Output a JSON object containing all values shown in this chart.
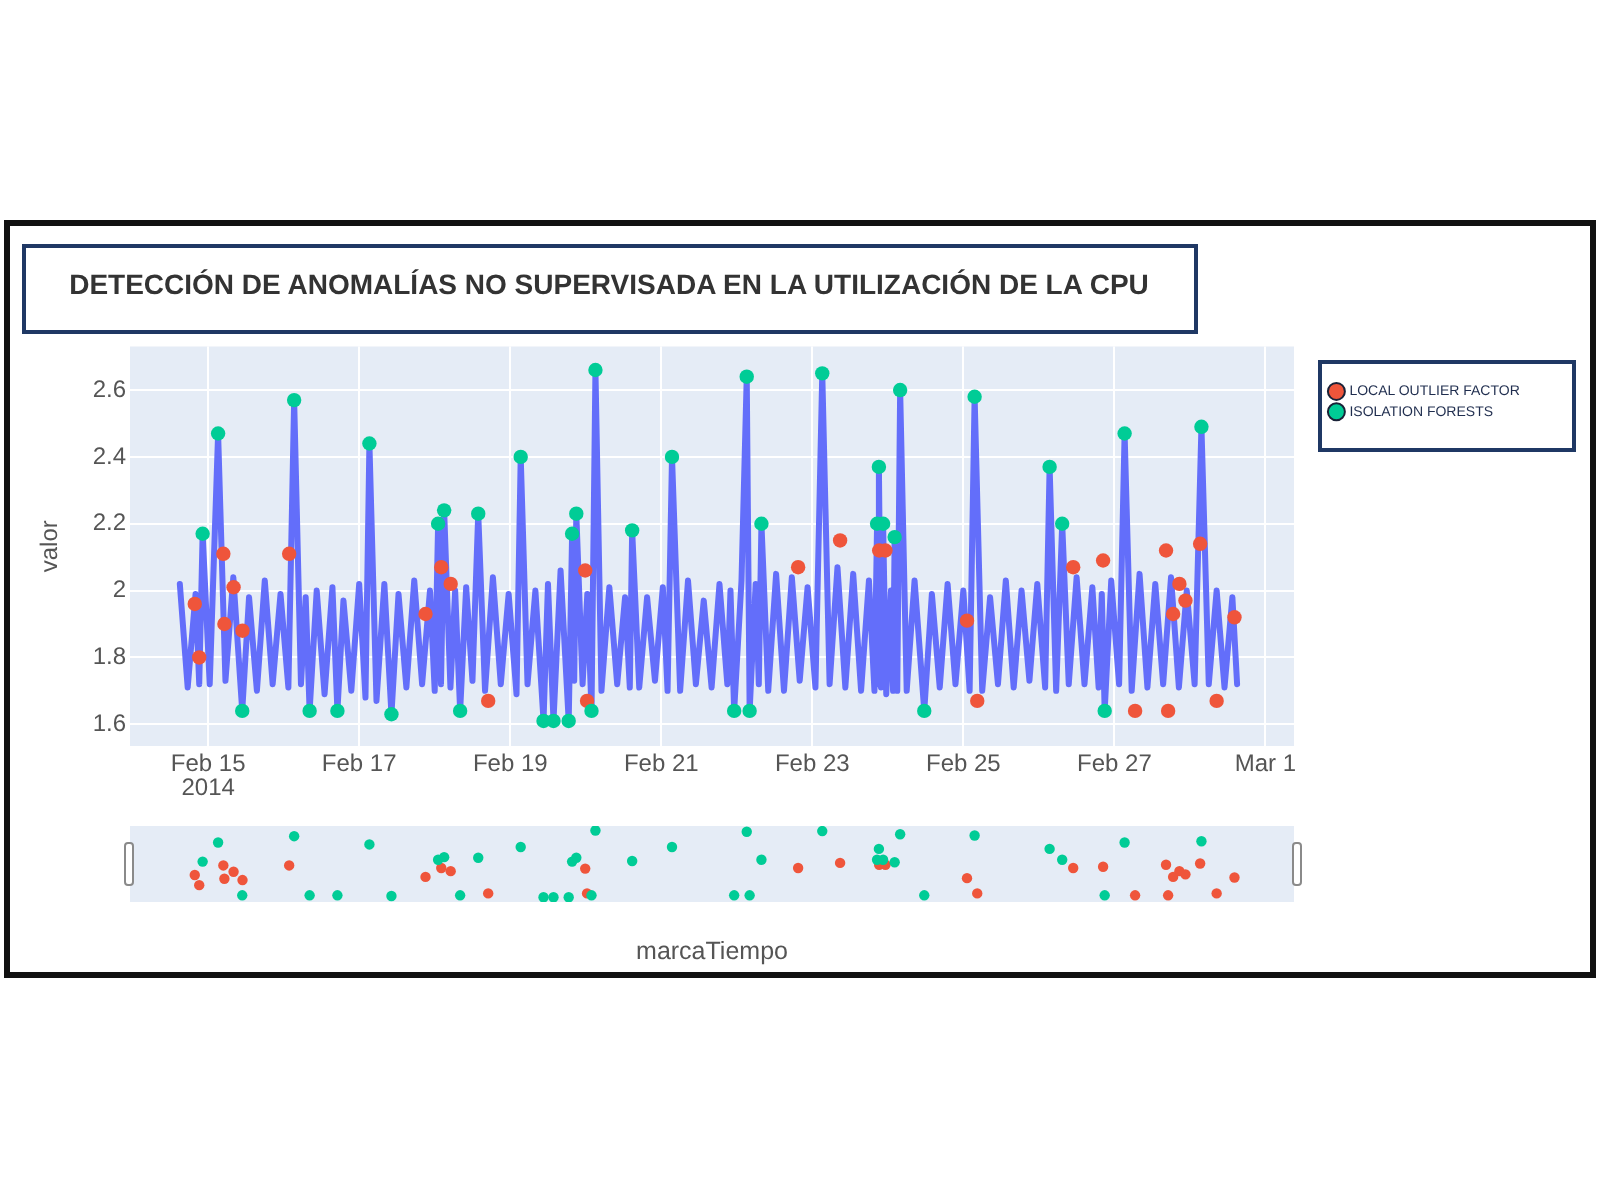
{
  "chart_data": {
    "type": "line",
    "title": "DETECCIÓN DE ANOMALÍAS NO SUPERVISADA EN LA UTILIZACIÓN DE LA CPU",
    "ylabel": "valor",
    "annotations": [
      "marcaTiempo"
    ],
    "xlim": [
      "2014-02-13T23:10",
      "2014-03-01T09:05"
    ],
    "xticks": [
      {
        "value": "2014-02-15",
        "label": "Feb 15\n2014"
      },
      {
        "value": "2014-02-17",
        "label": "Feb 17"
      },
      {
        "value": "2014-02-19",
        "label": "Feb 19"
      },
      {
        "value": "2014-02-21",
        "label": "Feb 21"
      },
      {
        "value": "2014-02-23",
        "label": "Feb 23"
      },
      {
        "value": "2014-02-25",
        "label": "Feb 25"
      },
      {
        "value": "2014-02-27",
        "label": "Feb 27"
      },
      {
        "value": "2014-03-01",
        "label": "Mar 1"
      }
    ],
    "ylim": [
      1.535,
      2.73
    ],
    "yticks": [
      1.6,
      1.8,
      2,
      2.2,
      2.4,
      2.6
    ],
    "grid": true,
    "legend": "top right",
    "series": [
      {
        "type": "line",
        "color": "#636efa",
        "x": [
          "2014-02-14T15:00",
          "2014-02-14T17:30",
          "2014-02-14T20:00",
          "2014-02-14T21:10",
          "2014-02-14T22:15",
          "2014-02-15T00:30",
          "2014-02-15T03:10",
          "2014-02-15T05:30",
          "2014-02-15T08:00",
          "2014-02-15T10:50",
          "2014-02-15T13:00",
          "2014-02-15T15:30",
          "2014-02-15T18:00",
          "2014-02-15T20:30",
          "2014-02-15T23:00",
          "2014-02-16T01:30",
          "2014-02-16T03:20",
          "2014-02-16T05:30",
          "2014-02-16T07:00",
          "2014-02-16T08:15",
          "2014-02-16T10:30",
          "2014-02-16T13:00",
          "2014-02-16T15:30",
          "2014-02-16T17:05",
          "2014-02-16T19:00",
          "2014-02-16T21:30",
          "2014-02-17T00:00",
          "2014-02-17T02:00",
          "2014-02-17T03:15",
          "2014-02-17T05:30",
          "2014-02-17T08:00",
          "2014-02-17T10:15",
          "2014-02-17T12:30",
          "2014-02-17T15:00",
          "2014-02-17T17:30",
          "2014-02-17T20:00",
          "2014-02-17T22:30",
          "2014-02-18T00:00",
          "2014-02-18T01:05",
          "2014-02-18T02:00",
          "2014-02-18T03:00",
          "2014-02-18T05:00",
          "2014-02-18T06:30",
          "2014-02-18T08:05",
          "2014-02-18T10:00",
          "2014-02-18T12:00",
          "2014-02-18T13:50",
          "2014-02-18T16:00",
          "2014-02-18T18:30",
          "2014-02-18T21:00",
          "2014-02-18T23:30",
          "2014-02-19T02:00",
          "2014-02-19T03:20",
          "2014-02-19T05:30",
          "2014-02-19T08:00",
          "2014-02-19T10:35",
          "2014-02-19T12:00",
          "2014-02-19T13:45",
          "2014-02-19T16:00",
          "2014-02-19T18:35",
          "2014-02-19T19:40",
          "2014-02-19T20:20",
          "2014-02-19T21:00",
          "2014-02-19T23:00",
          "2014-02-20T00:30",
          "2014-02-20T01:50",
          "2014-02-20T03:05",
          "2014-02-20T05:00",
          "2014-02-20T07:30",
          "2014-02-20T10:00",
          "2014-02-20T12:30",
          "2014-02-20T14:00",
          "2014-02-20T14:45",
          "2014-02-20T17:00",
          "2014-02-20T19:30",
          "2014-02-20T22:00",
          "2014-02-21T00:30",
          "2014-02-21T02:00",
          "2014-02-21T03:25",
          "2014-02-21T06:00",
          "2014-02-21T08:30",
          "2014-02-21T11:00",
          "2014-02-21T13:30",
          "2014-02-21T16:00",
          "2014-02-21T18:30",
          "2014-02-21T21:00",
          "2014-02-21T22:00",
          "2014-02-21T23:10",
          "2014-02-22T01:30",
          "2014-02-22T03:10",
          "2014-02-22T04:05",
          "2014-02-22T06:00",
          "2014-02-22T07:00",
          "2014-02-22T07:50",
          "2014-02-22T10:00",
          "2014-02-22T12:30",
          "2014-02-22T15:00",
          "2014-02-22T17:30",
          "2014-02-22T20:00",
          "2014-02-22T22:30",
          "2014-02-23T01:00",
          "2014-02-23T03:10",
          "2014-02-23T05:30",
          "2014-02-23T08:00",
          "2014-02-23T10:30",
          "2014-02-23T13:00",
          "2014-02-23T15:30",
          "2014-02-23T18:00",
          "2014-02-23T19:45",
          "2014-02-23T20:35",
          "2014-02-23T20:55",
          "2014-02-23T21:10",
          "2014-02-23T21:50",
          "2014-02-23T22:30",
          "2014-02-23T23:30",
          "2014-02-24T01:00",
          "2014-02-24T01:40",
          "2014-02-24T02:10",
          "2014-02-24T03:00",
          "2014-02-24T03:55",
          "2014-02-24T06:00",
          "2014-02-24T08:30",
          "2014-02-24T11:35",
          "2014-02-24T14:00",
          "2014-02-24T16:30",
          "2014-02-24T19:00",
          "2014-02-24T21:30",
          "2014-02-25T00:00",
          "2014-02-25T02:00",
          "2014-02-25T03:35",
          "2014-02-25T06:00",
          "2014-02-25T08:30",
          "2014-02-25T11:00",
          "2014-02-25T13:30",
          "2014-02-25T16:00",
          "2014-02-25T18:30",
          "2014-02-25T21:00",
          "2014-02-25T23:30",
          "2014-02-26T02:00",
          "2014-02-26T03:25",
          "2014-02-26T05:30",
          "2014-02-26T07:25",
          "2014-02-26T09:30",
          "2014-02-26T12:00",
          "2014-02-26T14:30",
          "2014-02-26T17:00",
          "2014-02-26T19:00",
          "2014-02-26T20:00",
          "2014-02-26T20:55",
          "2014-02-26T23:00",
          "2014-02-27T01:30",
          "2014-02-27T03:15",
          "2014-02-27T05:30",
          "2014-02-27T08:00",
          "2014-02-27T10:30",
          "2014-02-27T13:00",
          "2014-02-27T15:30",
          "2014-02-27T18:00",
          "2014-02-27T20:30",
          "2014-02-27T23:00",
          "2014-02-28T01:30",
          "2014-02-28T03:40",
          "2014-02-28T06:00",
          "2014-02-28T08:30",
          "2014-02-28T11:00",
          "2014-02-28T13:30",
          "2014-02-28T15:00"
        ],
        "values": [
          2.02,
          1.71,
          1.99,
          1.72,
          2.17,
          1.72,
          2.47,
          1.73,
          2.04,
          1.64,
          1.98,
          1.7,
          2.03,
          1.72,
          1.99,
          1.71,
          2.57,
          1.72,
          1.98,
          1.64,
          2.0,
          1.69,
          2.01,
          1.64,
          1.97,
          1.7,
          2.02,
          1.68,
          2.44,
          1.67,
          2.02,
          1.63,
          1.99,
          1.71,
          2.03,
          1.72,
          2.0,
          1.7,
          2.2,
          1.72,
          2.24,
          1.71,
          2.0,
          1.64,
          2.01,
          1.73,
          2.23,
          1.7,
          2.04,
          1.72,
          1.99,
          1.69,
          2.4,
          1.72,
          2.0,
          1.61,
          2.02,
          1.61,
          2.06,
          1.61,
          2.17,
          1.73,
          2.23,
          1.72,
          1.99,
          1.64,
          2.66,
          1.7,
          2.01,
          1.72,
          1.98,
          1.71,
          2.18,
          1.71,
          1.98,
          1.73,
          2.01,
          1.7,
          2.4,
          1.7,
          2.03,
          1.72,
          1.97,
          1.71,
          2.02,
          1.72,
          2.0,
          1.64,
          2.03,
          2.64,
          1.64,
          2.02,
          1.72,
          2.2,
          1.7,
          2.05,
          1.7,
          2.04,
          1.73,
          2.01,
          1.71,
          2.65,
          1.72,
          2.07,
          1.71,
          2.05,
          1.7,
          2.03,
          1.7,
          2.2,
          1.72,
          2.37,
          1.71,
          2.2,
          1.69,
          2.0,
          1.7,
          2.16,
          1.7,
          2.6,
          1.7,
          2.03,
          1.64,
          1.99,
          1.71,
          2.02,
          1.72,
          2.0,
          1.7,
          2.58,
          1.7,
          1.98,
          1.72,
          2.03,
          1.71,
          2.0,
          1.73,
          2.02,
          1.71,
          2.37,
          1.7,
          2.2,
          1.72,
          2.04,
          1.72,
          2.01,
          1.71,
          1.99,
          1.64,
          2.03,
          1.72,
          2.47,
          1.7,
          2.05,
          1.71,
          2.02,
          1.72,
          2.04,
          1.71,
          2.0,
          1.72,
          2.49,
          1.72,
          2.0,
          1.71,
          1.98,
          1.72
        ]
      },
      {
        "type": "scatter",
        "name": "LOCAL OUTLIER FACTOR",
        "color": "#ef553b",
        "marker": "circle",
        "x": [
          "2014-02-14T19:45",
          "2014-02-14T21:10",
          "2014-02-15T04:50",
          "2014-02-15T05:10",
          "2014-02-15T08:05",
          "2014-02-15T10:55",
          "2014-02-16T01:45",
          "2014-02-17T21:05",
          "2014-02-18T02:05",
          "2014-02-18T05:05",
          "2014-02-18T17:00",
          "2014-02-19T23:50",
          "2014-02-20T00:25",
          "2014-02-22T19:30",
          "2014-02-23T08:50",
          "2014-02-23T21:15",
          "2014-02-23T23:15",
          "2014-02-25T01:10",
          "2014-02-25T04:25",
          "2014-02-26T10:55",
          "2014-02-26T20:25",
          "2014-02-27T06:35",
          "2014-02-27T16:25",
          "2014-02-27T17:05",
          "2014-02-27T18:40",
          "2014-02-27T20:40",
          "2014-02-27T22:35",
          "2014-02-28T03:15",
          "2014-02-28T08:30",
          "2014-02-28T14:10"
        ],
        "values": [
          1.96,
          1.8,
          2.11,
          1.9,
          2.01,
          1.88,
          2.11,
          1.93,
          2.07,
          2.02,
          1.67,
          2.06,
          1.67,
          2.07,
          2.15,
          2.12,
          2.12,
          1.91,
          1.67,
          2.07,
          2.09,
          1.64,
          2.12,
          1.64,
          1.93,
          2.02,
          1.97,
          2.14,
          1.67,
          1.92
        ]
      },
      {
        "type": "scatter",
        "name": "ISOLATION FORESTS",
        "color": "#00cc96",
        "marker": "circle",
        "x": [
          "2014-02-14T22:15",
          "2014-02-15T03:10",
          "2014-02-15T10:50",
          "2014-02-16T03:20",
          "2014-02-16T08:15",
          "2014-02-16T17:05",
          "2014-02-17T03:15",
          "2014-02-17T10:15",
          "2014-02-18T01:05",
          "2014-02-18T03:00",
          "2014-02-18T08:05",
          "2014-02-18T13:50",
          "2014-02-19T03:20",
          "2014-02-19T10:35",
          "2014-02-19T13:45",
          "2014-02-19T18:35",
          "2014-02-19T19:40",
          "2014-02-19T21:00",
          "2014-02-20T01:50",
          "2014-02-20T03:05",
          "2014-02-20T14:45",
          "2014-02-21T03:25",
          "2014-02-21T23:10",
          "2014-02-22T03:10",
          "2014-02-22T04:05",
          "2014-02-22T07:50",
          "2014-02-23T03:10",
          "2014-02-23T20:35",
          "2014-02-23T21:10",
          "2014-02-23T22:30",
          "2014-02-24T02:10",
          "2014-02-24T03:55",
          "2014-02-24T11:35",
          "2014-02-25T03:35",
          "2014-02-26T03:25",
          "2014-02-26T07:25",
          "2014-02-26T20:55",
          "2014-02-27T03:15",
          "2014-02-28T03:40"
        ],
        "values": [
          2.17,
          2.47,
          1.64,
          2.57,
          1.64,
          1.64,
          2.44,
          1.63,
          2.2,
          2.24,
          1.64,
          2.23,
          2.4,
          1.61,
          1.61,
          1.61,
          2.17,
          2.23,
          1.64,
          2.66,
          2.18,
          2.4,
          1.64,
          2.64,
          1.64,
          2.2,
          2.65,
          2.2,
          2.37,
          2.2,
          2.16,
          2.6,
          1.64,
          2.58,
          2.37,
          2.2,
          1.64,
          2.47,
          2.49
        ]
      }
    ]
  }
}
